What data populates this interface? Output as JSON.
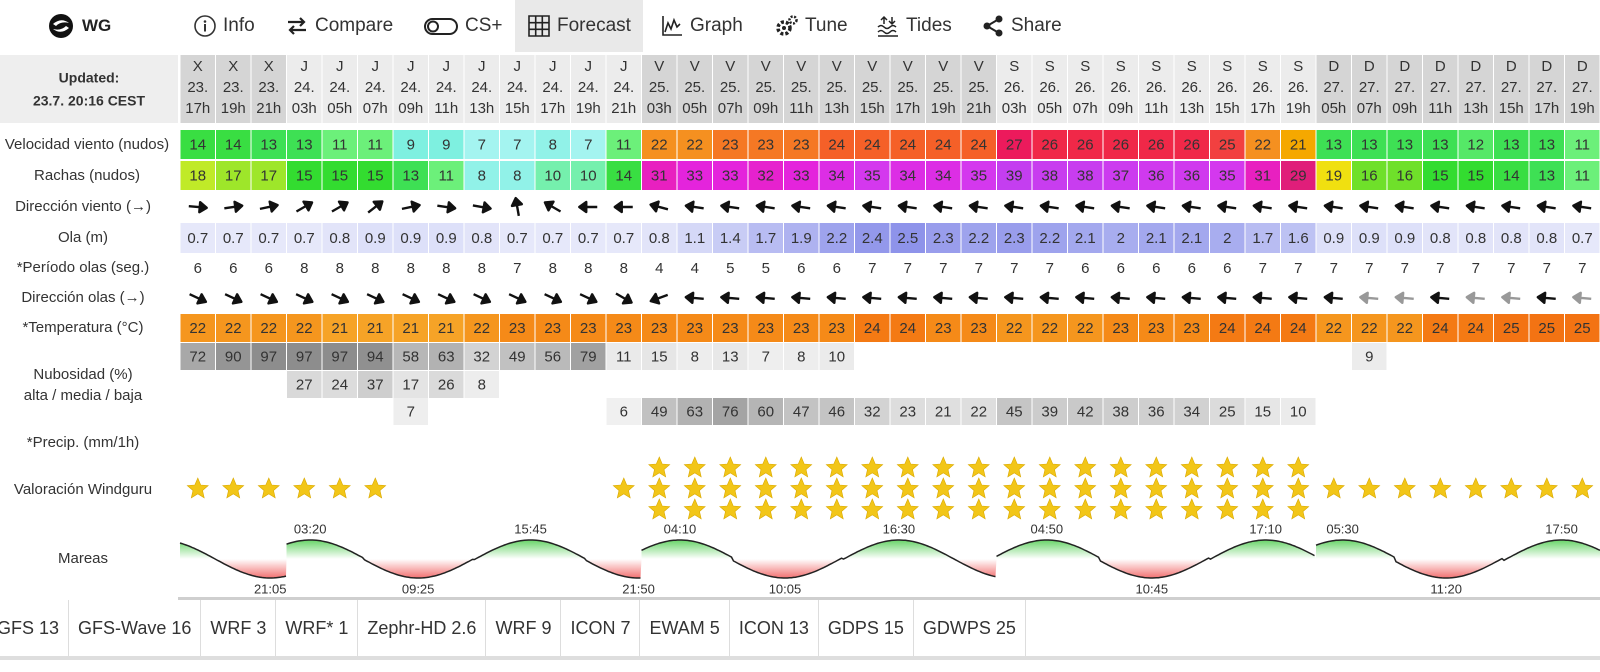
{
  "nav": {
    "logo": "WG",
    "items": [
      "Info",
      "Compare",
      "CS+",
      "Forecast",
      "Graph",
      "Tune",
      "Tides",
      "Share"
    ],
    "active": 3
  },
  "updated": {
    "label": "Updated:",
    "time": "23.7. 20:16 CEST"
  },
  "labels": {
    "wind": "Velocidad viento (nudos)",
    "gust": "Rachas (nudos)",
    "wind_dir": "Dirección viento (→)",
    "wave": "Ola (m)",
    "period": "*Período olas (seg.)",
    "wave_dir": "Dirección olas (→)",
    "temp": "*Temperatura (°C)",
    "clouds": [
      "Nubosidad (%)",
      "alta / media / baja"
    ],
    "precip": "*Precip. (mm/1h)",
    "rating": "Valoración Windguru",
    "tides": "Mareas"
  },
  "days": [
    {
      "letter": "X",
      "date": "23.",
      "hours": [
        "17h",
        "19h",
        "21h"
      ],
      "tides": [
        {
          "time": "21:05",
          "type": "low"
        }
      ]
    },
    {
      "letter": "J",
      "date": "24.",
      "hours": [
        "03h",
        "05h",
        "07h",
        "09h",
        "11h",
        "13h",
        "15h",
        "17h",
        "19h",
        "21h"
      ],
      "tides": [
        {
          "time": "03:20",
          "type": "high"
        },
        {
          "time": "09:25",
          "type": "low"
        },
        {
          "time": "15:45",
          "type": "high"
        },
        {
          "time": "21:50",
          "type": "low"
        }
      ]
    },
    {
      "letter": "V",
      "date": "25.",
      "hours": [
        "03h",
        "05h",
        "07h",
        "09h",
        "11h",
        "13h",
        "15h",
        "17h",
        "19h",
        "21h"
      ],
      "tides": [
        {
          "time": "04:10",
          "type": "high"
        },
        {
          "time": "10:05",
          "type": "low"
        },
        {
          "time": "16:30",
          "type": "high"
        }
      ]
    },
    {
      "letter": "S",
      "date": "26.",
      "hours": [
        "03h",
        "05h",
        "07h",
        "09h",
        "11h",
        "13h",
        "15h",
        "17h",
        "19h"
      ],
      "tides": [
        {
          "time": "04:50",
          "type": "high"
        },
        {
          "time": "10:45",
          "type": "low"
        },
        {
          "time": "17:10",
          "type": "high"
        }
      ]
    },
    {
      "letter": "D",
      "date": "27.",
      "hours": [
        "05h",
        "07h",
        "09h",
        "11h",
        "13h",
        "15h",
        "17h",
        "19h"
      ],
      "tides": [
        {
          "time": "05:30",
          "type": "high"
        },
        {
          "time": "11:20",
          "type": "low"
        },
        {
          "time": "17:50",
          "type": "high"
        }
      ]
    }
  ],
  "rows": {
    "wind": [
      14,
      14,
      13,
      13,
      11,
      11,
      9,
      9,
      7,
      7,
      8,
      7,
      11,
      22,
      22,
      23,
      23,
      23,
      24,
      24,
      24,
      24,
      24,
      27,
      26,
      26,
      26,
      26,
      26,
      25,
      22,
      21,
      13,
      13,
      13,
      13,
      12,
      13,
      13,
      11
    ],
    "gust": [
      18,
      17,
      17,
      15,
      15,
      15,
      13,
      11,
      8,
      8,
      10,
      10,
      14,
      31,
      33,
      33,
      32,
      33,
      34,
      35,
      34,
      34,
      35,
      39,
      38,
      38,
      37,
      36,
      36,
      35,
      31,
      29,
      19,
      16,
      16,
      15,
      15,
      14,
      13,
      11
    ],
    "wind_dir": [
      5,
      -8,
      -12,
      -30,
      -30,
      -38,
      -12,
      8,
      10,
      -100,
      -150,
      180,
      180,
      195,
      188,
      188,
      188,
      188,
      188,
      188,
      188,
      188,
      188,
      188,
      188,
      188,
      188,
      188,
      188,
      188,
      188,
      188,
      188,
      188,
      188,
      188,
      188,
      188,
      188,
      188
    ],
    "wave": [
      0.7,
      0.7,
      0.7,
      0.7,
      0.8,
      0.9,
      0.9,
      0.9,
      0.8,
      0.7,
      0.7,
      0.7,
      0.7,
      0.8,
      1.1,
      1.4,
      1.7,
      1.9,
      2.2,
      2.4,
      2.5,
      2.3,
      2.2,
      2.3,
      2.2,
      2.1,
      2,
      2.1,
      2.1,
      2,
      1.7,
      1.6,
      0.9,
      0.9,
      0.9,
      0.8,
      0.8,
      0.8,
      0.8,
      0.7
    ],
    "period": [
      6,
      6,
      6,
      8,
      8,
      8,
      8,
      8,
      8,
      7,
      8,
      8,
      8,
      4,
      4,
      5,
      5,
      6,
      6,
      7,
      7,
      7,
      7,
      7,
      7,
      6,
      6,
      6,
      6,
      6,
      7,
      7,
      7,
      7,
      7,
      7,
      7,
      7,
      7,
      7
    ],
    "wave_dir": [
      25,
      25,
      25,
      25,
      25,
      25,
      25,
      25,
      25,
      25,
      25,
      25,
      30,
      160,
      185,
      185,
      185,
      185,
      185,
      185,
      185,
      185,
      185,
      185,
      185,
      185,
      185,
      185,
      185,
      185,
      185,
      185,
      185,
      185,
      185,
      185,
      185,
      185,
      185,
      185
    ],
    "temp": [
      22,
      22,
      22,
      22,
      21,
      21,
      21,
      21,
      22,
      23,
      23,
      23,
      23,
      23,
      23,
      23,
      23,
      23,
      23,
      24,
      24,
      23,
      23,
      22,
      22,
      22,
      23,
      23,
      23,
      24,
      24,
      24,
      22,
      22,
      22,
      24,
      24,
      25,
      25,
      25
    ],
    "clouds_high": [
      72,
      90,
      97,
      97,
      97,
      94,
      58,
      63,
      32,
      49,
      56,
      79,
      11,
      15,
      8,
      13,
      7,
      8,
      10,
      null,
      null,
      null,
      null,
      null,
      null,
      null,
      null,
      null,
      null,
      null,
      null,
      null,
      null,
      9,
      null,
      null,
      null,
      null,
      null,
      null
    ],
    "clouds_mid": [
      null,
      null,
      null,
      27,
      24,
      37,
      17,
      26,
      8,
      null,
      null,
      null,
      null,
      null,
      null,
      null,
      null,
      null,
      null,
      null,
      null,
      null,
      null,
      null,
      null,
      null,
      null,
      null,
      null,
      null,
      null,
      null,
      null,
      null,
      null,
      null,
      null,
      null,
      null,
      null
    ],
    "clouds_low": [
      null,
      null,
      null,
      null,
      null,
      null,
      7,
      null,
      null,
      null,
      null,
      null,
      6,
      49,
      63,
      76,
      60,
      47,
      46,
      32,
      23,
      21,
      22,
      45,
      39,
      42,
      38,
      36,
      34,
      25,
      15,
      10,
      null,
      null,
      null,
      null,
      null,
      null,
      null,
      null
    ],
    "rating": [
      1,
      1,
      1,
      1,
      1,
      1,
      0,
      0,
      0,
      0,
      0,
      0,
      1,
      3,
      3,
      3,
      3,
      3,
      3,
      3,
      3,
      3,
      3,
      3,
      3,
      3,
      3,
      3,
      3,
      3,
      3,
      3,
      1,
      1,
      1,
      1,
      1,
      1,
      1,
      1
    ]
  },
  "faded_columns": [
    33,
    34,
    36,
    37,
    39
  ],
  "models": [
    "GFS 13",
    "GFS-Wave 16",
    "WRF 3",
    "WRF* 1",
    "Zephr-HD 2.6",
    "WRF 9",
    "ICON 7",
    "EWAM 5",
    "ICON 13",
    "GDPS 15",
    "GDWPS 25"
  ]
}
